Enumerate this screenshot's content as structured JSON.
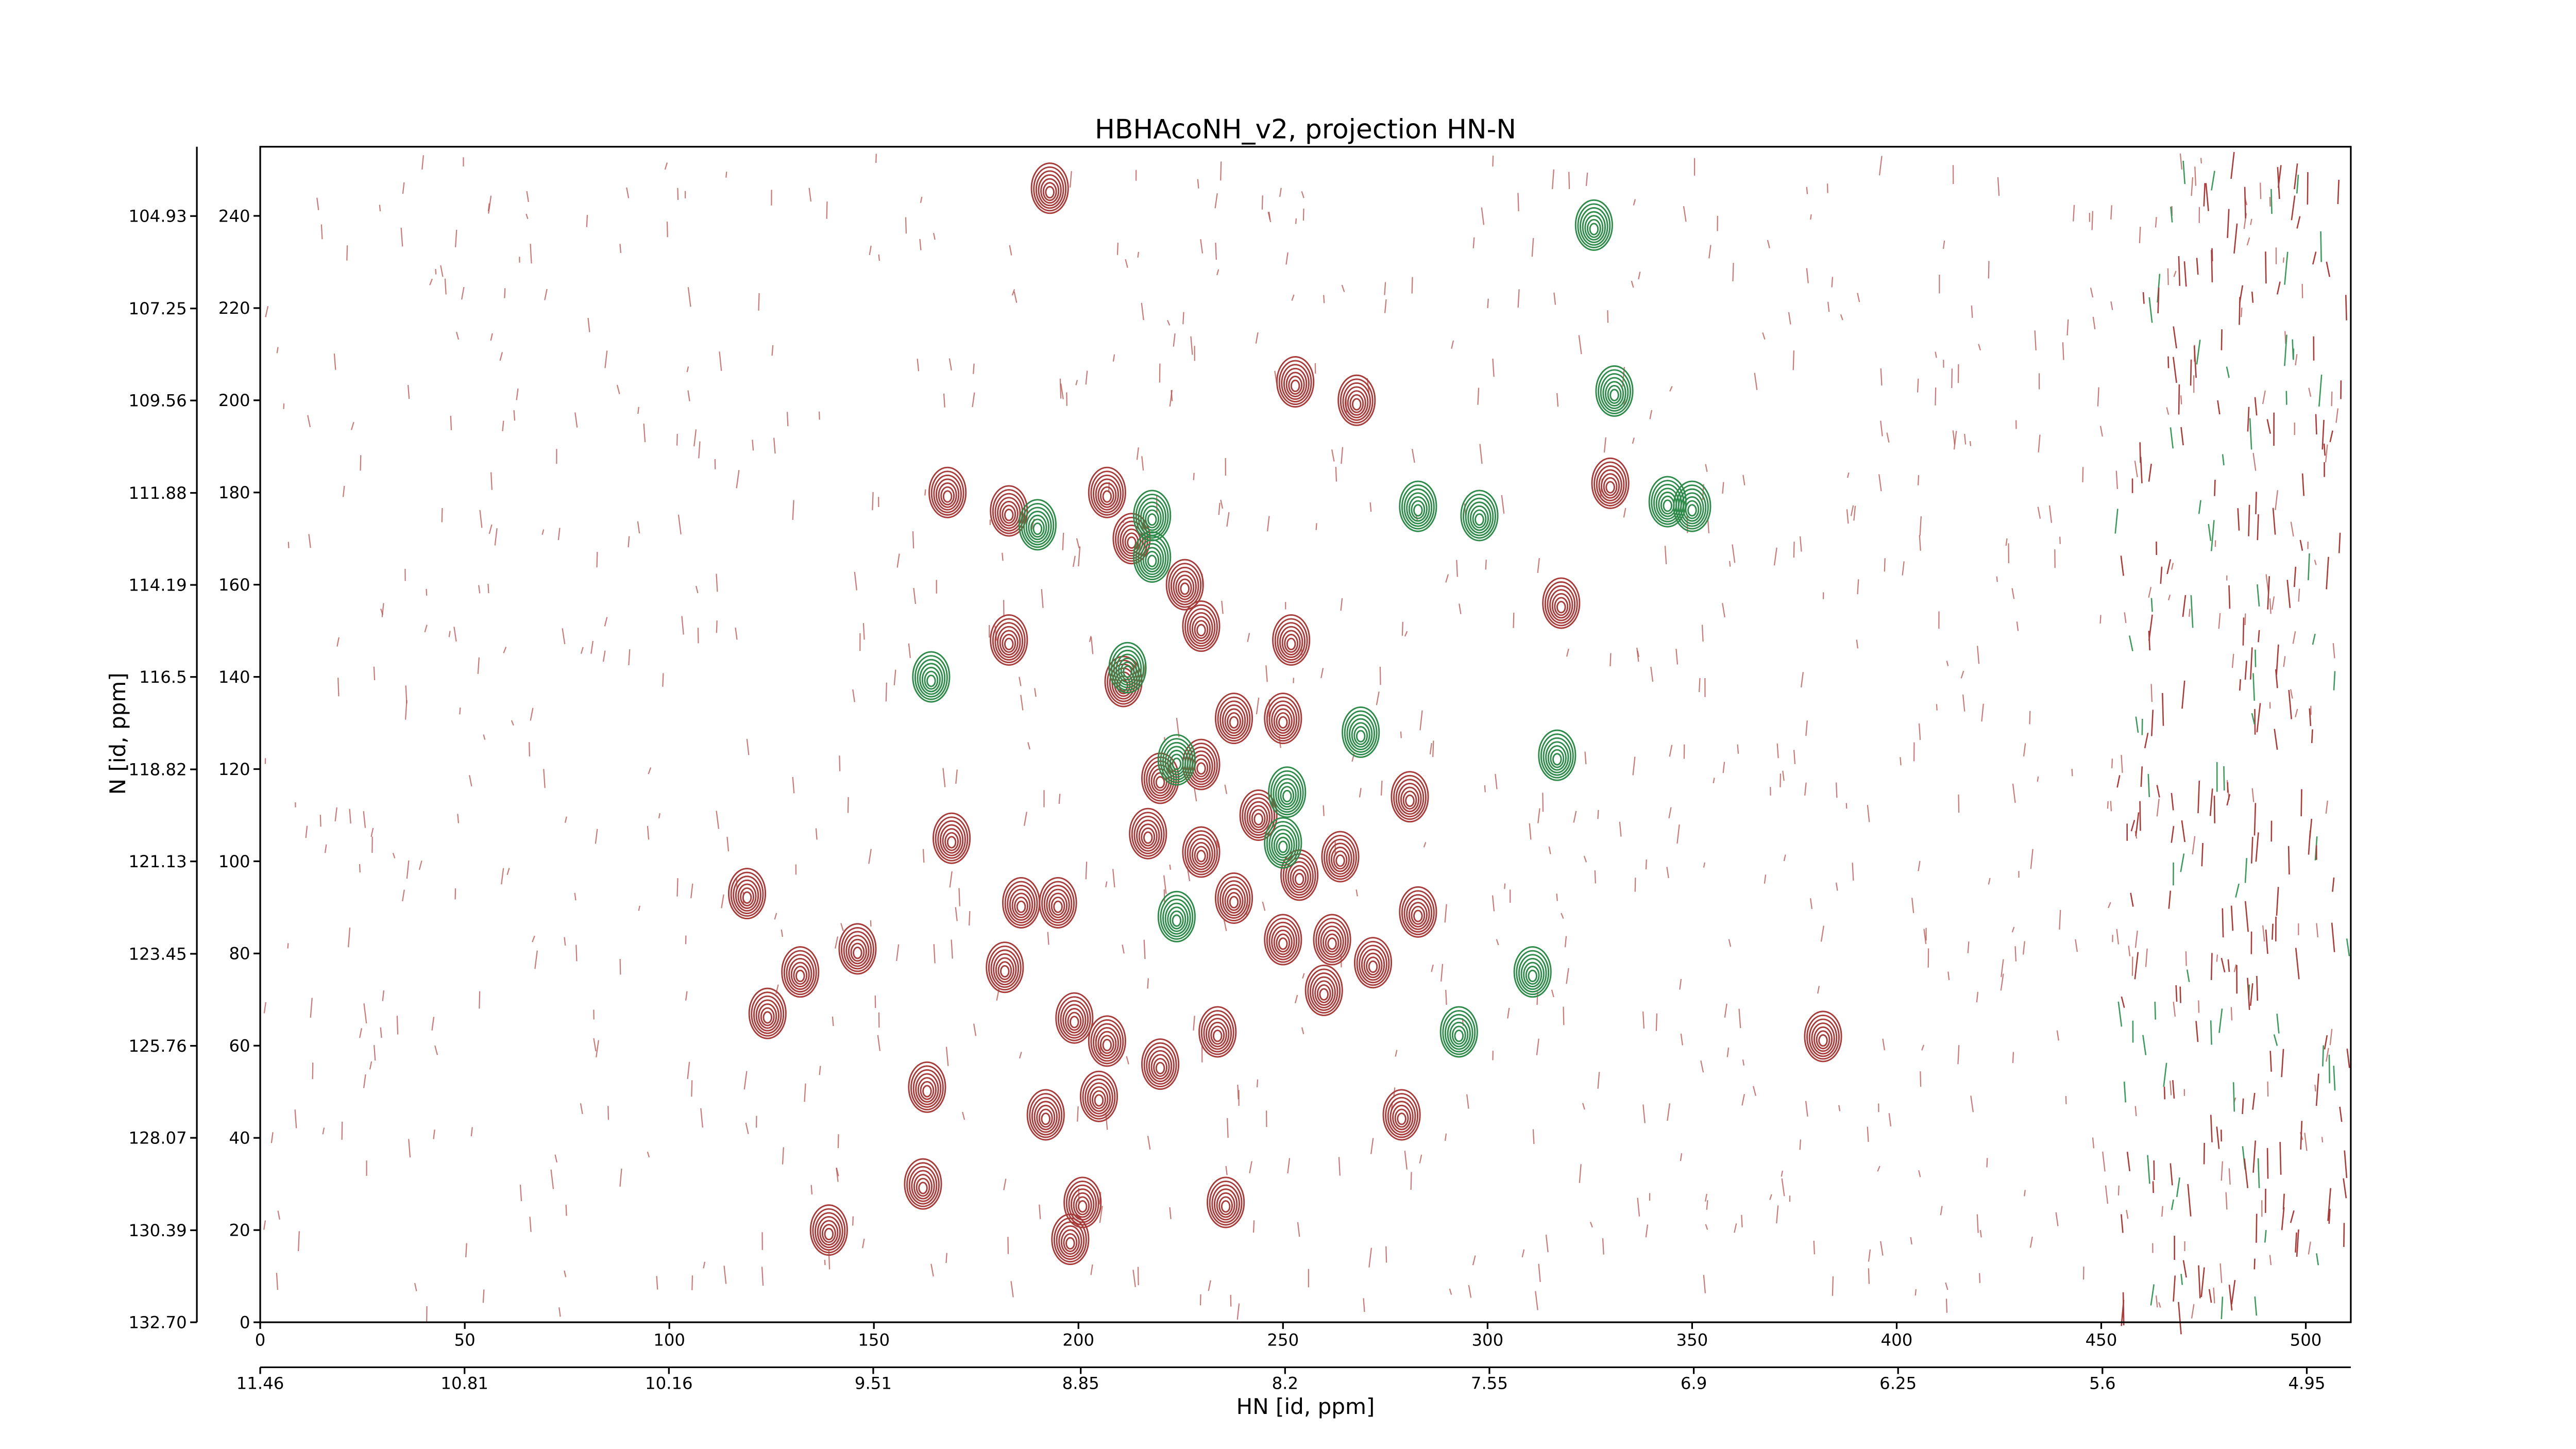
{
  "chart_data": {
    "type": "contour",
    "title": "HBHAcoNH_v2, projection HN-N",
    "x_label": "HN [id, ppm]",
    "y_label": "N [id, ppm]",
    "xlim": [
      0,
      511
    ],
    "ylim": [
      0,
      255
    ],
    "xticks": [
      0,
      50,
      100,
      150,
      200,
      250,
      300,
      350,
      400,
      450,
      500
    ],
    "yticks": [
      0,
      20,
      40,
      60,
      80,
      100,
      120,
      140,
      160,
      180,
      200,
      220,
      240
    ],
    "x2lim": [
      11.46,
      4.81
    ],
    "x2ticks": [
      11.46,
      10.81,
      10.16,
      9.51,
      8.85,
      8.2,
      {
        "value": 7.55,
        "label": "7.55"
      },
      6.9,
      6.25,
      5.6,
      4.95
    ],
    "y2lim": [
      132.7,
      103.19
    ],
    "y2ticks": [
      {
        "value": 132.7,
        "label": "132.70"
      },
      130.39,
      128.07,
      125.76,
      123.45,
      121.13,
      118.82,
      116.5,
      114.19,
      111.88,
      109.56,
      107.25,
      104.93
    ],
    "series": [
      {
        "color": "#a83c3a",
        "x": [
          193,
          168,
          183,
          207,
          213,
          226,
          183,
          211,
          253,
          268,
          330,
          318,
          252,
          230,
          250,
          238,
          220,
          230,
          281,
          169,
          119,
          186,
          195,
          132,
          146,
          182,
          124,
          163,
          192,
          205,
          199,
          207,
          220,
          234,
          260,
          262,
          272,
          283,
          250,
          238,
          217,
          244,
          264,
          279,
          236,
          162,
          201,
          198,
          139,
          382,
          254,
          230
        ],
        "y": [
          246,
          180,
          176,
          180,
          170,
          160,
          148,
          139,
          204,
          200,
          182,
          156,
          148,
          151,
          131,
          131,
          118,
          121,
          114,
          105,
          93,
          91,
          91,
          76,
          81,
          77,
          67,
          51,
          45,
          49,
          66,
          61,
          56,
          63,
          72,
          83,
          78,
          89,
          83,
          92,
          106,
          110,
          101,
          45,
          26,
          30,
          26,
          18,
          20,
          62,
          97,
          102
        ]
      },
      {
        "color": "#2e8b4a",
        "x": [
          164,
          190,
          218,
          218,
          326,
          331,
          283,
          298,
          344,
          350,
          317,
          311,
          293,
          269,
          250,
          212,
          224,
          224,
          251
        ],
        "y": [
          140,
          173,
          175,
          166,
          238,
          202,
          177,
          175,
          178,
          177,
          123,
          76,
          63,
          128,
          104,
          142,
          122,
          88,
          115
        ]
      }
    ]
  }
}
